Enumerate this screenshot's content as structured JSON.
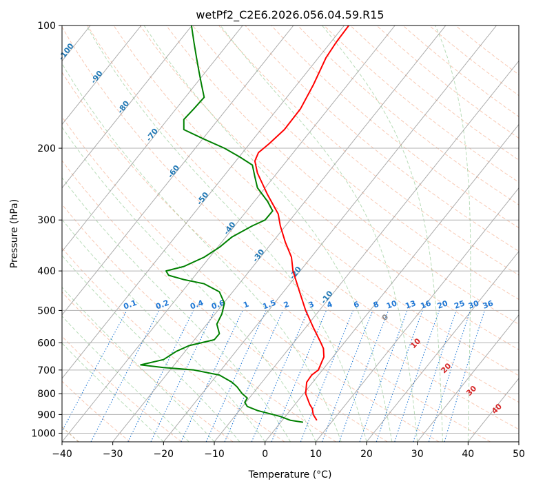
{
  "chart_data": {
    "type": "line",
    "title": "wetPf2_C2E6.2026.056.04.59.R15",
    "xlabel": "Temperature (°C)",
    "ylabel": "Pressure (hPa)",
    "xlim": [
      -40,
      50
    ],
    "ylim": [
      1050,
      100
    ],
    "y_scale": "log",
    "grid": true,
    "x_ticks": [
      -40,
      -30,
      -20,
      -10,
      0,
      10,
      20,
      30,
      40,
      50
    ],
    "y_ticks": [
      100,
      200,
      300,
      400,
      500,
      600,
      700,
      800,
      900,
      1000
    ],
    "colors": {
      "temperature": "#ff0000",
      "dewpoint": "#008000",
      "isotherm": "#888888",
      "dry_adiabat": "#f4a582",
      "moist_adiabat": "#88c488",
      "mixing_ratio": "#1f77d4",
      "temp_label": "#1f77b4",
      "theta_label": "#d62728",
      "wetbulb": "#c8a882"
    },
    "series": [
      {
        "role": "temperature",
        "points": [
          [
            930,
            10.2
          ],
          [
            900,
            9.5
          ],
          [
            870,
            9.3
          ],
          [
            850,
            8.8
          ],
          [
            800,
            8.0
          ],
          [
            750,
            8.2
          ],
          [
            720,
            9.2
          ],
          [
            700,
            10.5
          ],
          [
            650,
            11.6
          ],
          [
            620,
            11.5
          ],
          [
            600,
            11.0
          ],
          [
            550,
            9.5
          ],
          [
            500,
            8.0
          ],
          [
            450,
            6.8
          ],
          [
            400,
            5.5
          ],
          [
            370,
            5.2
          ],
          [
            340,
            4.0
          ],
          [
            310,
            3.0
          ],
          [
            290,
            2.6
          ],
          [
            260,
            0.5
          ],
          [
            230,
            -1.5
          ],
          [
            215,
            -2.0
          ],
          [
            205,
            -1.3
          ],
          [
            195,
            0.8
          ],
          [
            180,
            3.8
          ],
          [
            160,
            7.0
          ],
          [
            140,
            9.5
          ],
          [
            120,
            12.0
          ],
          [
            110,
            14.0
          ],
          [
            100,
            16.5
          ]
        ]
      },
      {
        "role": "dewpoint",
        "points": [
          [
            940,
            7.5
          ],
          [
            930,
            5.0
          ],
          [
            910,
            3.0
          ],
          [
            880,
            -1.5
          ],
          [
            860,
            -3.5
          ],
          [
            840,
            -4.0
          ],
          [
            820,
            -3.5
          ],
          [
            800,
            -4.5
          ],
          [
            770,
            -5.5
          ],
          [
            750,
            -6.5
          ],
          [
            720,
            -9.0
          ],
          [
            700,
            -14.0
          ],
          [
            690,
            -20.0
          ],
          [
            680,
            -24.5
          ],
          [
            660,
            -20.0
          ],
          [
            630,
            -17.5
          ],
          [
            610,
            -15.0
          ],
          [
            590,
            -10.0
          ],
          [
            570,
            -9.0
          ],
          [
            540,
            -9.5
          ],
          [
            510,
            -8.5
          ],
          [
            480,
            -8.0
          ],
          [
            450,
            -9.0
          ],
          [
            430,
            -12.0
          ],
          [
            420,
            -16.0
          ],
          [
            410,
            -19.0
          ],
          [
            400,
            -19.5
          ],
          [
            390,
            -16.0
          ],
          [
            370,
            -12.0
          ],
          [
            350,
            -9.0
          ],
          [
            330,
            -6.5
          ],
          [
            310,
            -2.5
          ],
          [
            300,
            0.0
          ],
          [
            285,
            1.5
          ],
          [
            270,
            0.5
          ],
          [
            250,
            -1.5
          ],
          [
            235,
            -2.0
          ],
          [
            220,
            -2.5
          ],
          [
            210,
            -5.0
          ],
          [
            200,
            -8.0
          ],
          [
            190,
            -12.0
          ],
          [
            180,
            -16.0
          ],
          [
            170,
            -16.0
          ],
          [
            160,
            -14.0
          ],
          [
            150,
            -12.0
          ],
          [
            140,
            -12.5
          ],
          [
            130,
            -13.0
          ],
          [
            120,
            -13.5
          ],
          [
            110,
            -14.0
          ],
          [
            100,
            -14.5
          ]
        ]
      }
    ],
    "isotherm_labels": [
      "-100",
      "-90",
      "-80",
      "-70",
      "-60",
      "-50",
      "-40",
      "-30",
      "-20",
      "-10"
    ],
    "mixing_ratio_labels": [
      "0.1",
      "0.2",
      "0.4",
      "0.6",
      "1",
      "1.5",
      "2",
      "3",
      "4",
      "6",
      "8",
      "10",
      "13",
      "16",
      "20",
      "25",
      "30",
      "36"
    ],
    "theta_e_labels": [
      "0",
      "10",
      "20",
      "30",
      "40"
    ]
  }
}
